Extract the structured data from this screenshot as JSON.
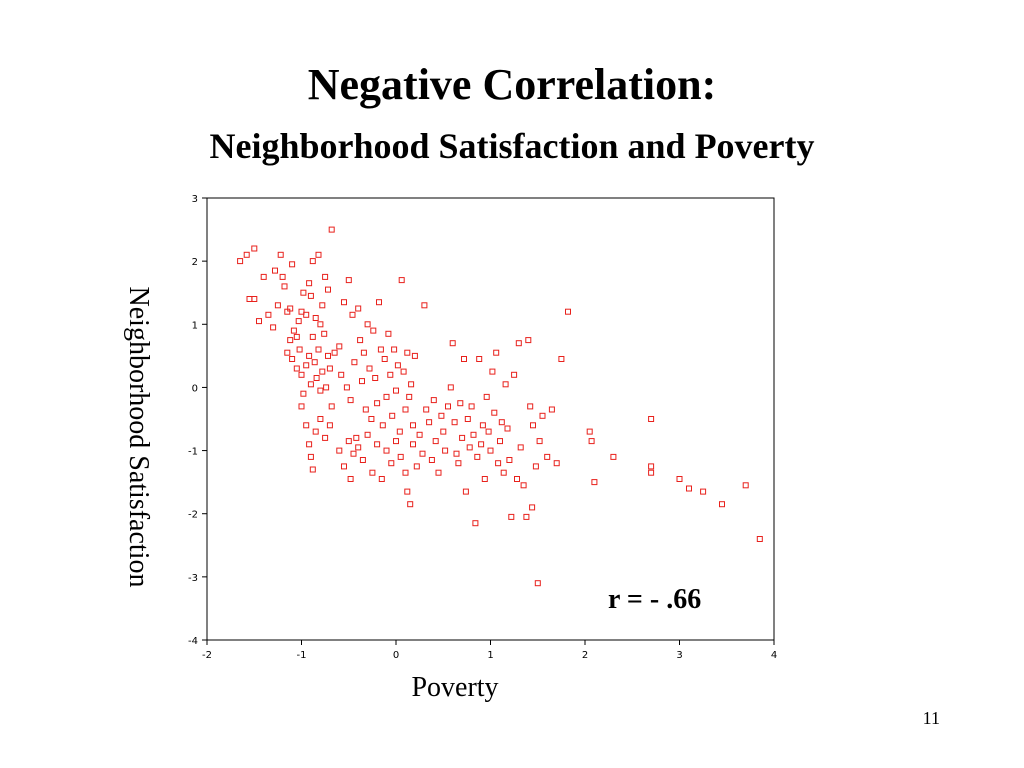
{
  "slide": {
    "title": "Negative Correlation:",
    "subtitle": "Neighborhood Satisfaction and Poverty",
    "slide_number": "11"
  },
  "chart_data": {
    "type": "scatter",
    "xlabel": "Poverty",
    "ylabel": "Neighborhood Satisfaction",
    "xlim": [
      -2,
      4
    ],
    "ylim": [
      -4,
      3
    ],
    "xticks": [
      "-2",
      "-1",
      "0",
      "1",
      "2",
      "3",
      "4"
    ],
    "yticks": [
      "3",
      "2",
      "1",
      "0",
      "-1",
      "-2",
      "-3",
      "-4"
    ],
    "grid": false,
    "marker": "hollow-square",
    "color": "#e8211c",
    "annotation": "r = - .66",
    "points": [
      [
        -1.65,
        2.0
      ],
      [
        -1.58,
        2.1
      ],
      [
        -1.5,
        2.2
      ],
      [
        -1.55,
        1.4
      ],
      [
        -1.5,
        1.4
      ],
      [
        -1.45,
        1.05
      ],
      [
        -1.4,
        1.75
      ],
      [
        -1.35,
        1.15
      ],
      [
        -1.3,
        0.95
      ],
      [
        -1.28,
        1.85
      ],
      [
        -1.25,
        1.3
      ],
      [
        -1.2,
        1.75
      ],
      [
        -1.22,
        2.1
      ],
      [
        -1.18,
        1.6
      ],
      [
        -1.15,
        1.2
      ],
      [
        -1.12,
        1.25
      ],
      [
        -1.1,
        1.95
      ],
      [
        -1.08,
        0.9
      ],
      [
        -1.05,
        0.8
      ],
      [
        -1.03,
        1.05
      ],
      [
        -1.0,
        1.2
      ],
      [
        -0.98,
        1.5
      ],
      [
        -0.95,
        1.15
      ],
      [
        -0.92,
        1.65
      ],
      [
        -0.9,
        1.45
      ],
      [
        -0.88,
        2.0
      ],
      [
        -0.85,
        1.1
      ],
      [
        -0.82,
        2.1
      ],
      [
        -0.8,
        1.0
      ],
      [
        -0.78,
        1.3
      ],
      [
        -0.75,
        1.75
      ],
      [
        -0.72,
        1.55
      ],
      [
        -0.68,
        2.5
      ],
      [
        -1.15,
        0.55
      ],
      [
        -1.12,
        0.75
      ],
      [
        -1.1,
        0.45
      ],
      [
        -1.05,
        0.3
      ],
      [
        -1.02,
        0.6
      ],
      [
        -1.0,
        0.2
      ],
      [
        -0.98,
        -0.1
      ],
      [
        -0.95,
        0.35
      ],
      [
        -0.92,
        0.5
      ],
      [
        -0.9,
        0.05
      ],
      [
        -0.88,
        0.8
      ],
      [
        -0.86,
        0.4
      ],
      [
        -0.84,
        0.15
      ],
      [
        -0.82,
        0.6
      ],
      [
        -0.8,
        -0.05
      ],
      [
        -0.78,
        0.25
      ],
      [
        -0.76,
        0.85
      ],
      [
        -0.74,
        0.0
      ],
      [
        -0.72,
        0.5
      ],
      [
        -0.7,
        0.3
      ],
      [
        -0.68,
        -0.3
      ],
      [
        -1.0,
        -0.3
      ],
      [
        -0.95,
        -0.6
      ],
      [
        -0.92,
        -0.9
      ],
      [
        -0.9,
        -1.1
      ],
      [
        -0.88,
        -1.3
      ],
      [
        -0.85,
        -0.7
      ],
      [
        -0.8,
        -0.5
      ],
      [
        -0.75,
        -0.8
      ],
      [
        -0.7,
        -0.6
      ],
      [
        -0.65,
        0.55
      ],
      [
        -0.6,
        0.65
      ],
      [
        -0.58,
        0.2
      ],
      [
        -0.55,
        1.35
      ],
      [
        -0.52,
        0.0
      ],
      [
        -0.5,
        1.7
      ],
      [
        -0.48,
        -0.2
      ],
      [
        -0.46,
        1.15
      ],
      [
        -0.44,
        0.4
      ],
      [
        -0.42,
        -0.8
      ],
      [
        -0.4,
        1.25
      ],
      [
        -0.38,
        0.75
      ],
      [
        -0.36,
        0.1
      ],
      [
        -0.34,
        0.55
      ],
      [
        -0.32,
        -0.35
      ],
      [
        -0.3,
        1.0
      ],
      [
        -0.28,
        0.3
      ],
      [
        -0.26,
        -0.5
      ],
      [
        -0.24,
        0.9
      ],
      [
        -0.22,
        0.15
      ],
      [
        -0.2,
        -0.25
      ],
      [
        -0.18,
        1.35
      ],
      [
        -0.16,
        0.6
      ],
      [
        -0.14,
        -0.6
      ],
      [
        -0.12,
        0.45
      ],
      [
        -0.1,
        -0.15
      ],
      [
        -0.08,
        0.85
      ],
      [
        -0.06,
        0.2
      ],
      [
        -0.04,
        -0.45
      ],
      [
        -0.02,
        0.6
      ],
      [
        0.0,
        -0.05
      ],
      [
        0.02,
        0.35
      ],
      [
        0.04,
        -0.7
      ],
      [
        0.06,
        1.7
      ],
      [
        0.08,
        0.25
      ],
      [
        0.1,
        -0.35
      ],
      [
        0.12,
        0.55
      ],
      [
        0.14,
        -0.15
      ],
      [
        0.16,
        0.05
      ],
      [
        0.18,
        -0.6
      ],
      [
        0.2,
        0.5
      ],
      [
        -0.6,
        -1.0
      ],
      [
        -0.55,
        -1.25
      ],
      [
        -0.5,
        -0.85
      ],
      [
        -0.48,
        -1.45
      ],
      [
        -0.45,
        -1.05
      ],
      [
        -0.4,
        -0.95
      ],
      [
        -0.35,
        -1.15
      ],
      [
        -0.3,
        -0.75
      ],
      [
        -0.25,
        -1.35
      ],
      [
        -0.2,
        -0.9
      ],
      [
        -0.15,
        -1.45
      ],
      [
        -0.1,
        -1.0
      ],
      [
        -0.05,
        -1.2
      ],
      [
        0.0,
        -0.85
      ],
      [
        0.05,
        -1.1
      ],
      [
        0.1,
        -1.35
      ],
      [
        0.12,
        -1.65
      ],
      [
        0.15,
        -1.85
      ],
      [
        0.18,
        -0.9
      ],
      [
        0.22,
        -1.25
      ],
      [
        0.25,
        -0.75
      ],
      [
        0.28,
        -1.05
      ],
      [
        0.3,
        1.3
      ],
      [
        0.32,
        -0.35
      ],
      [
        0.35,
        -0.55
      ],
      [
        0.38,
        -1.15
      ],
      [
        0.4,
        -0.2
      ],
      [
        0.42,
        -0.85
      ],
      [
        0.45,
        -1.35
      ],
      [
        0.48,
        -0.45
      ],
      [
        0.5,
        -0.7
      ],
      [
        0.52,
        -1.0
      ],
      [
        0.55,
        -0.3
      ],
      [
        0.58,
        0.0
      ],
      [
        0.6,
        0.7
      ],
      [
        0.62,
        -0.55
      ],
      [
        0.64,
        -1.05
      ],
      [
        0.66,
        -1.2
      ],
      [
        0.68,
        -0.25
      ],
      [
        0.7,
        -0.8
      ],
      [
        0.72,
        0.45
      ],
      [
        0.74,
        -1.65
      ],
      [
        0.76,
        -0.5
      ],
      [
        0.78,
        -0.95
      ],
      [
        0.8,
        -0.3
      ],
      [
        0.82,
        -0.75
      ],
      [
        0.84,
        -2.15
      ],
      [
        0.86,
        -1.1
      ],
      [
        0.88,
        0.45
      ],
      [
        0.9,
        -0.9
      ],
      [
        0.92,
        -0.6
      ],
      [
        0.94,
        -1.45
      ],
      [
        0.96,
        -0.15
      ],
      [
        0.98,
        -0.7
      ],
      [
        1.0,
        -1.0
      ],
      [
        1.02,
        0.25
      ],
      [
        1.04,
        -0.4
      ],
      [
        1.06,
        0.55
      ],
      [
        1.08,
        -1.2
      ],
      [
        1.1,
        -0.85
      ],
      [
        1.12,
        -0.55
      ],
      [
        1.14,
        -1.35
      ],
      [
        1.16,
        0.05
      ],
      [
        1.18,
        -0.65
      ],
      [
        1.2,
        -1.15
      ],
      [
        1.22,
        -2.05
      ],
      [
        1.25,
        0.2
      ],
      [
        1.28,
        -1.45
      ],
      [
        1.3,
        0.7
      ],
      [
        1.32,
        -0.95
      ],
      [
        1.35,
        -1.55
      ],
      [
        1.38,
        -2.05
      ],
      [
        1.4,
        0.75
      ],
      [
        1.42,
        -0.3
      ],
      [
        1.44,
        -1.9
      ],
      [
        1.45,
        -0.6
      ],
      [
        1.48,
        -1.25
      ],
      [
        1.5,
        -3.1
      ],
      [
        1.52,
        -0.85
      ],
      [
        1.55,
        -0.45
      ],
      [
        1.6,
        -1.1
      ],
      [
        1.65,
        -0.35
      ],
      [
        1.7,
        -1.2
      ],
      [
        1.75,
        0.45
      ],
      [
        1.82,
        1.2
      ],
      [
        2.05,
        -0.7
      ],
      [
        2.07,
        -0.85
      ],
      [
        2.1,
        -1.5
      ],
      [
        2.3,
        -1.1
      ],
      [
        2.7,
        -1.25
      ],
      [
        2.7,
        -1.35
      ],
      [
        2.7,
        -0.5
      ],
      [
        3.0,
        -1.45
      ],
      [
        3.1,
        -1.6
      ],
      [
        3.25,
        -1.65
      ],
      [
        3.45,
        -1.85
      ],
      [
        3.7,
        -1.55
      ],
      [
        3.85,
        -2.4
      ]
    ]
  }
}
